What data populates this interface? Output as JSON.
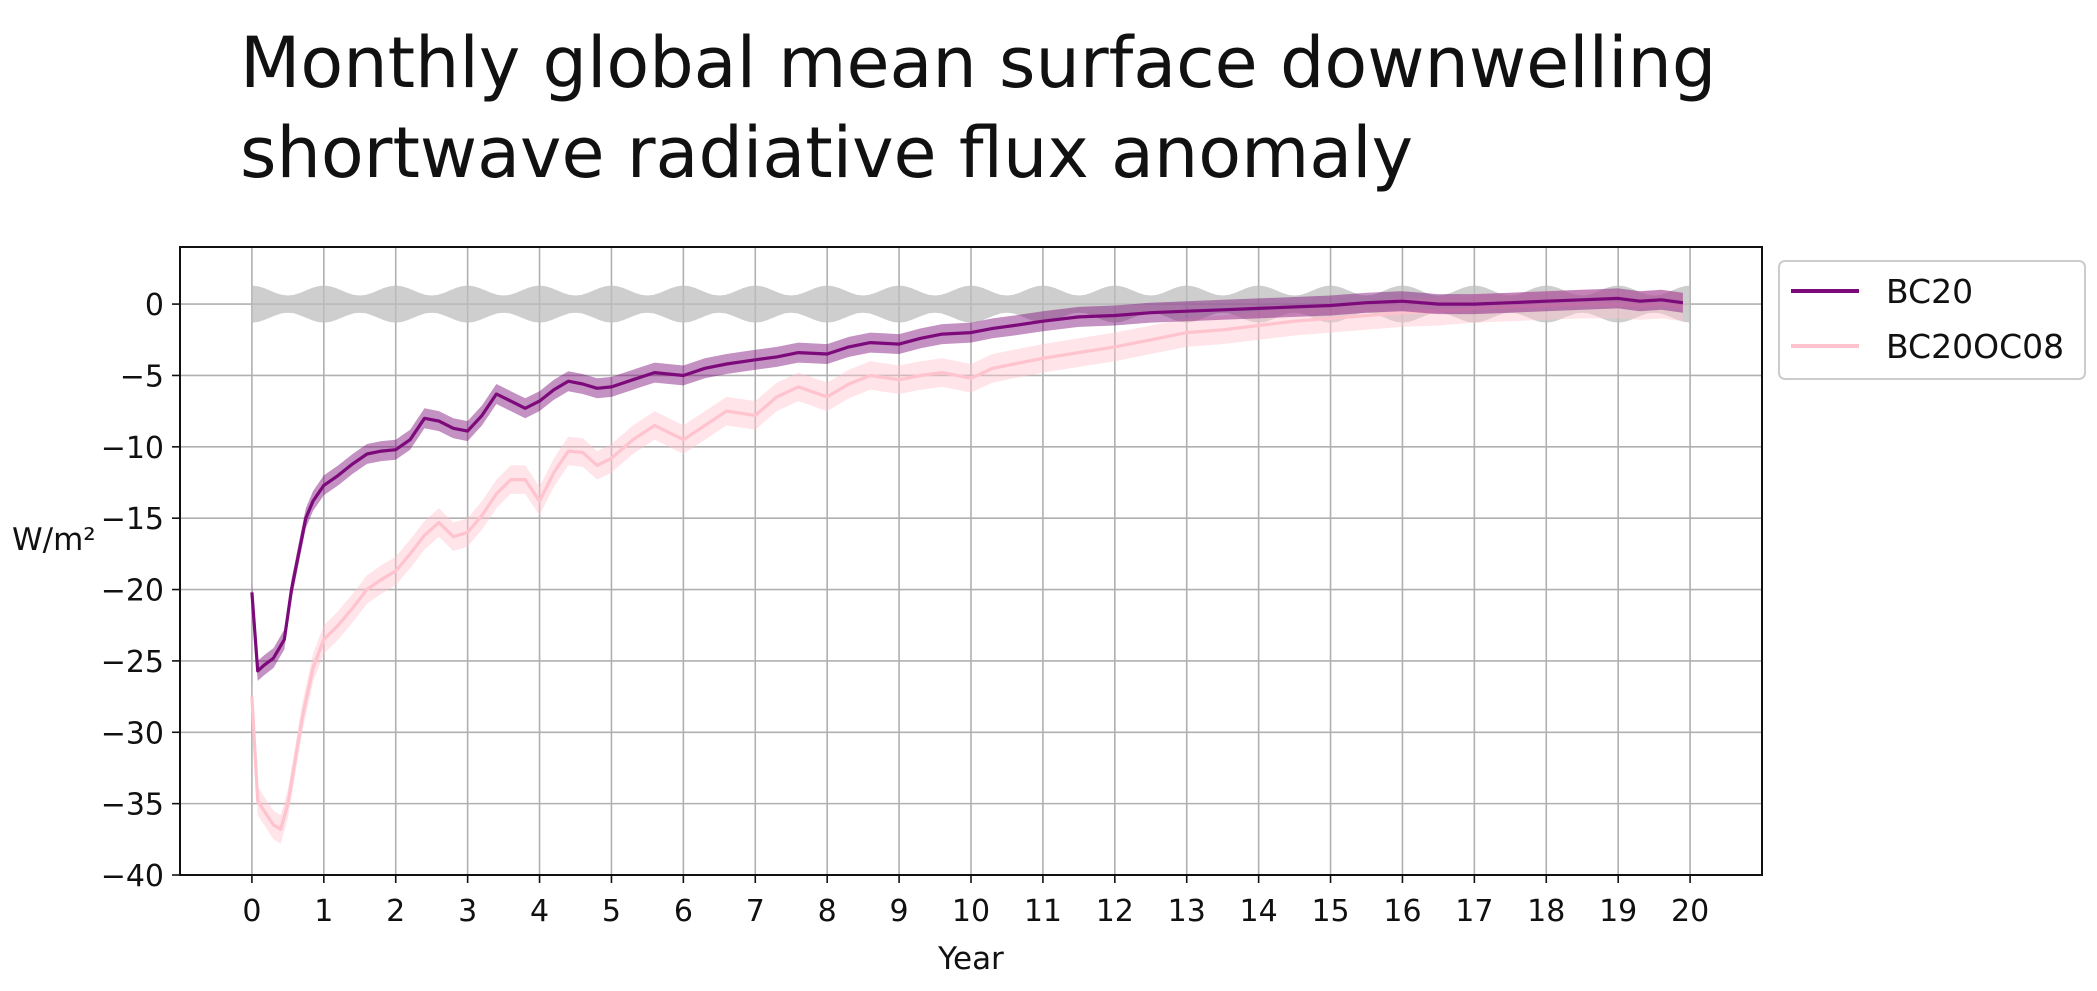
{
  "title_lines": [
    "Monthly global mean surface downwelling",
    "shortwave radiative flux anomaly"
  ],
  "chart_data": {
    "type": "line",
    "title": "Monthly global mean surface downwelling shortwave radiative flux anomaly",
    "xlabel": "Year",
    "ylabel": "W/m²",
    "xlim": [
      -1,
      21
    ],
    "ylim": [
      -40,
      4
    ],
    "xticks": [
      0,
      1,
      2,
      3,
      4,
      5,
      6,
      7,
      8,
      9,
      10,
      11,
      12,
      13,
      14,
      15,
      16,
      17,
      18,
      19,
      20
    ],
    "yticks": [
      0,
      -5,
      -10,
      -15,
      -20,
      -25,
      -30,
      -35,
      -40
    ],
    "grid": true,
    "legend": {
      "position": "right-outside-top"
    },
    "control_band": {
      "color": "#bdbdbd",
      "center": 0,
      "halfwidth_min": 0.6,
      "halfwidth_max": 1.3,
      "period_years": 1
    },
    "series": [
      {
        "name": "BC20",
        "color": "#7d0a7a",
        "shade": 0.7,
        "x": [
          0,
          0.08,
          0.17,
          0.3,
          0.45,
          0.55,
          0.65,
          0.75,
          0.85,
          1.0,
          1.2,
          1.4,
          1.6,
          1.8,
          2.0,
          2.2,
          2.4,
          2.6,
          2.8,
          3.0,
          3.2,
          3.4,
          3.6,
          3.8,
          4.0,
          4.2,
          4.4,
          4.6,
          4.8,
          5.0,
          5.3,
          5.6,
          6.0,
          6.3,
          6.6,
          7.0,
          7.3,
          7.6,
          8.0,
          8.3,
          8.6,
          9.0,
          9.3,
          9.6,
          10.0,
          10.3,
          10.6,
          11.0,
          11.5,
          12.0,
          12.5,
          13.0,
          13.5,
          14.0,
          14.5,
          15.0,
          15.5,
          16.0,
          16.5,
          17.0,
          17.5,
          18.0,
          18.5,
          19.0,
          19.3,
          19.6,
          19.9
        ],
        "y": [
          -20.2,
          -25.7,
          -25.3,
          -24.8,
          -23.5,
          -20.0,
          -17.5,
          -15.0,
          -13.8,
          -12.7,
          -12.0,
          -11.2,
          -10.5,
          -10.3,
          -10.2,
          -9.5,
          -8.0,
          -8.2,
          -8.7,
          -8.9,
          -7.8,
          -6.3,
          -6.8,
          -7.3,
          -6.8,
          -6.0,
          -5.4,
          -5.6,
          -5.9,
          -5.8,
          -5.3,
          -4.8,
          -5.0,
          -4.5,
          -4.2,
          -3.9,
          -3.7,
          -3.4,
          -3.5,
          -3.0,
          -2.7,
          -2.8,
          -2.4,
          -2.1,
          -2.0,
          -1.7,
          -1.5,
          -1.2,
          -0.9,
          -0.8,
          -0.6,
          -0.5,
          -0.4,
          -0.3,
          -0.2,
          -0.1,
          0.1,
          0.2,
          0.0,
          0.0,
          0.1,
          0.2,
          0.3,
          0.4,
          0.2,
          0.3,
          0.1
        ]
      },
      {
        "name": "BC20OC08",
        "color": "#ffc3ce",
        "shade": 1.0,
        "x": [
          0,
          0.08,
          0.17,
          0.3,
          0.4,
          0.5,
          0.6,
          0.7,
          0.85,
          1.0,
          1.2,
          1.4,
          1.6,
          1.8,
          2.0,
          2.2,
          2.4,
          2.6,
          2.8,
          3.0,
          3.2,
          3.4,
          3.6,
          3.8,
          4.0,
          4.2,
          4.4,
          4.6,
          4.8,
          5.0,
          5.3,
          5.6,
          6.0,
          6.3,
          6.6,
          7.0,
          7.3,
          7.6,
          8.0,
          8.3,
          8.6,
          9.0,
          9.3,
          9.6,
          10.0,
          10.3,
          10.6,
          11.0,
          11.5,
          12.0,
          12.5,
          13.0,
          13.5,
          14.0,
          14.5,
          15.0,
          15.5,
          16.0,
          16.5,
          17.0,
          17.5,
          18.0,
          18.5,
          19.0,
          19.3,
          19.6,
          19.9
        ],
        "y": [
          -27.5,
          -34.8,
          -35.5,
          -36.5,
          -36.8,
          -35.0,
          -32.0,
          -29.0,
          -25.5,
          -23.5,
          -22.5,
          -21.3,
          -20.0,
          -19.3,
          -18.7,
          -17.5,
          -16.2,
          -15.3,
          -16.3,
          -16.0,
          -14.8,
          -13.3,
          -12.3,
          -12.3,
          -13.8,
          -11.8,
          -10.3,
          -10.4,
          -11.3,
          -10.8,
          -9.5,
          -8.5,
          -9.5,
          -8.5,
          -7.5,
          -7.8,
          -6.5,
          -5.8,
          -6.5,
          -5.6,
          -5.0,
          -5.3,
          -5.0,
          -4.8,
          -5.2,
          -4.5,
          -4.2,
          -3.8,
          -3.4,
          -3.0,
          -2.5,
          -2.0,
          -1.8,
          -1.5,
          -1.2,
          -1.0,
          -0.8,
          -0.6,
          -0.5,
          -0.3,
          -0.2,
          -0.1,
          0.0,
          0.0,
          -0.1,
          0.0,
          -0.2
        ]
      }
    ]
  }
}
